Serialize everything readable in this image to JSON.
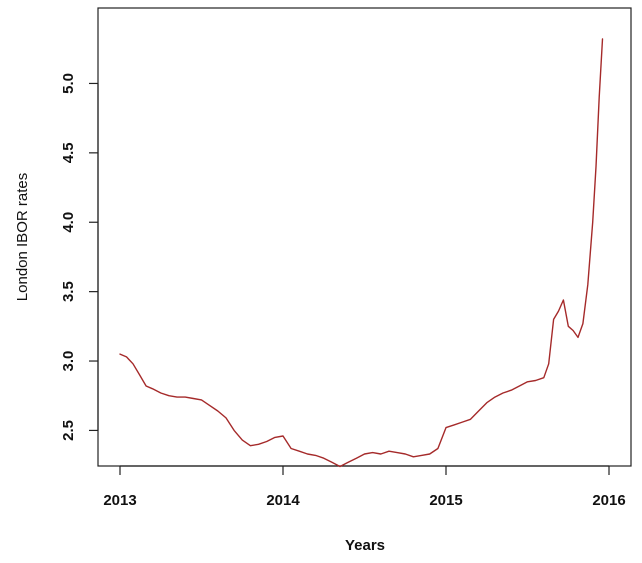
{
  "chart_data": {
    "type": "line",
    "xlabel": "Years",
    "ylabel": "London IBOR rates",
    "xlim": [
      2013,
      2016
    ],
    "ylim": [
      2.15,
      5.45
    ],
    "x_ticks": [
      {
        "value": 2013,
        "label": "2013"
      },
      {
        "value": 2014,
        "label": "2014"
      },
      {
        "value": 2015,
        "label": "2015"
      },
      {
        "value": 2016,
        "label": "2016"
      }
    ],
    "y_ticks": [
      {
        "value": 2.5,
        "label": "2.5"
      },
      {
        "value": 3.0,
        "label": "3.0"
      },
      {
        "value": 3.5,
        "label": "3.5"
      },
      {
        "value": 4.0,
        "label": "4.0"
      },
      {
        "value": 4.5,
        "label": "4.5"
      },
      {
        "value": 5.0,
        "label": "5.0"
      }
    ],
    "grid": false,
    "line_color": "#a52a2a",
    "series": [
      {
        "x": [
          2013.0,
          2013.04,
          2013.08,
          2013.12,
          2013.16,
          2013.2,
          2013.25,
          2013.3,
          2013.35,
          2013.4,
          2013.45,
          2013.5,
          2013.55,
          2013.6,
          2013.65,
          2013.7,
          2013.75,
          2013.8,
          2013.85,
          2013.9,
          2013.95,
          2014.0,
          2014.05,
          2014.1,
          2014.15,
          2014.2,
          2014.25,
          2014.3,
          2014.35,
          2014.4,
          2014.45,
          2014.5,
          2014.55,
          2014.6,
          2014.65,
          2014.7,
          2014.75,
          2014.8,
          2014.85,
          2014.9,
          2014.95,
          2015.0,
          2015.05,
          2015.1,
          2015.15,
          2015.2,
          2015.25,
          2015.3,
          2015.35,
          2015.4,
          2015.45,
          2015.5,
          2015.55,
          2015.6,
          2015.63,
          2015.66,
          2015.69,
          2015.72,
          2015.75,
          2015.78,
          2015.81,
          2015.84,
          2015.87,
          2015.9,
          2015.92,
          2015.94,
          2015.96
        ],
        "values": [
          3.05,
          3.03,
          2.98,
          2.9,
          2.82,
          2.8,
          2.77,
          2.75,
          2.74,
          2.74,
          2.73,
          2.72,
          2.68,
          2.64,
          2.59,
          2.5,
          2.43,
          2.39,
          2.4,
          2.42,
          2.45,
          2.46,
          2.37,
          2.35,
          2.33,
          2.32,
          2.3,
          2.27,
          2.24,
          2.27,
          2.3,
          2.33,
          2.34,
          2.33,
          2.35,
          2.34,
          2.33,
          2.31,
          2.32,
          2.33,
          2.37,
          2.52,
          2.54,
          2.56,
          2.58,
          2.64,
          2.7,
          2.74,
          2.77,
          2.79,
          2.82,
          2.85,
          2.86,
          2.88,
          2.98,
          3.3,
          3.36,
          3.44,
          3.25,
          3.22,
          3.17,
          3.27,
          3.55,
          4.0,
          4.4,
          4.9,
          5.32
        ]
      }
    ]
  }
}
